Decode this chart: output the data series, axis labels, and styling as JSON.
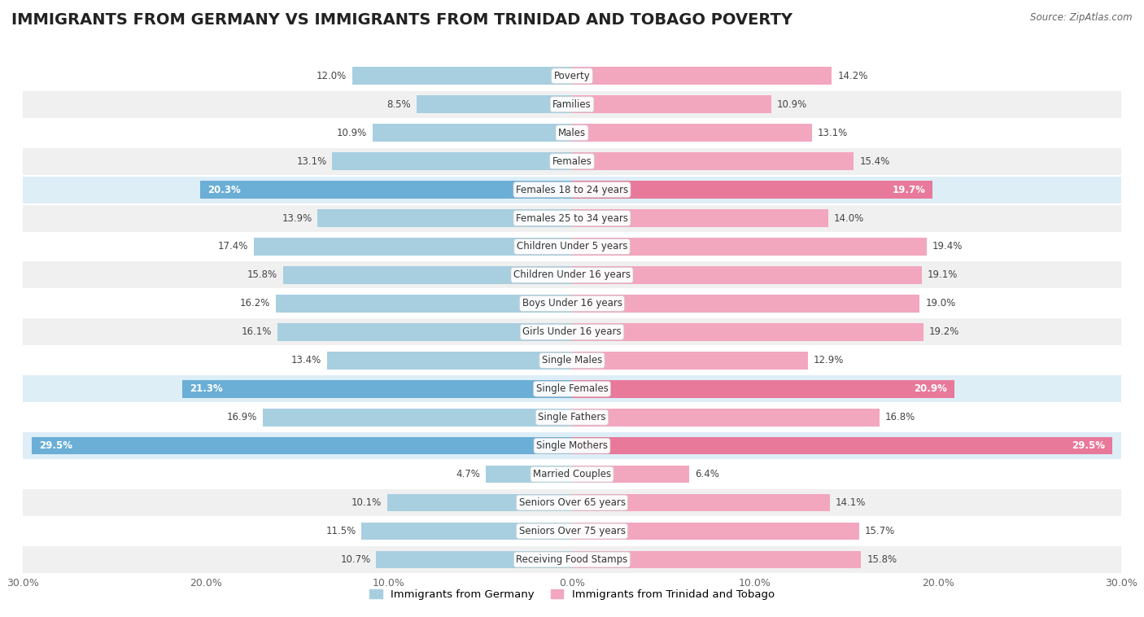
{
  "title": "IMMIGRANTS FROM GERMANY VS IMMIGRANTS FROM TRINIDAD AND TOBAGO POVERTY",
  "source": "Source: ZipAtlas.com",
  "categories": [
    "Poverty",
    "Families",
    "Males",
    "Females",
    "Females 18 to 24 years",
    "Females 25 to 34 years",
    "Children Under 5 years",
    "Children Under 16 years",
    "Boys Under 16 years",
    "Girls Under 16 years",
    "Single Males",
    "Single Females",
    "Single Fathers",
    "Single Mothers",
    "Married Couples",
    "Seniors Over 65 years",
    "Seniors Over 75 years",
    "Receiving Food Stamps"
  ],
  "germany_values": [
    12.0,
    8.5,
    10.9,
    13.1,
    20.3,
    13.9,
    17.4,
    15.8,
    16.2,
    16.1,
    13.4,
    21.3,
    16.9,
    29.5,
    4.7,
    10.1,
    11.5,
    10.7
  ],
  "trinidad_values": [
    14.2,
    10.9,
    13.1,
    15.4,
    19.7,
    14.0,
    19.4,
    19.1,
    19.0,
    19.2,
    12.9,
    20.9,
    16.8,
    29.5,
    6.4,
    14.1,
    15.7,
    15.8
  ],
  "germany_color": "#a8cfe0",
  "trinidad_color": "#f2a7bf",
  "germany_highlight_color": "#6baed6",
  "trinidad_highlight_color": "#e8799a",
  "highlight_rows": [
    4,
    11,
    13
  ],
  "xlim": 30.0,
  "bar_height": 0.62,
  "background_color": "#ffffff",
  "row_alt_color": "#f0f0f0",
  "row_main_color": "#ffffff",
  "row_highlight_color": "#ddeef7",
  "label_germany": "Immigrants from Germany",
  "label_trinidad": "Immigrants from Trinidad and Tobago",
  "title_fontsize": 14,
  "label_fontsize": 8.5,
  "tick_fontsize": 9,
  "annotation_fontsize": 8.5
}
